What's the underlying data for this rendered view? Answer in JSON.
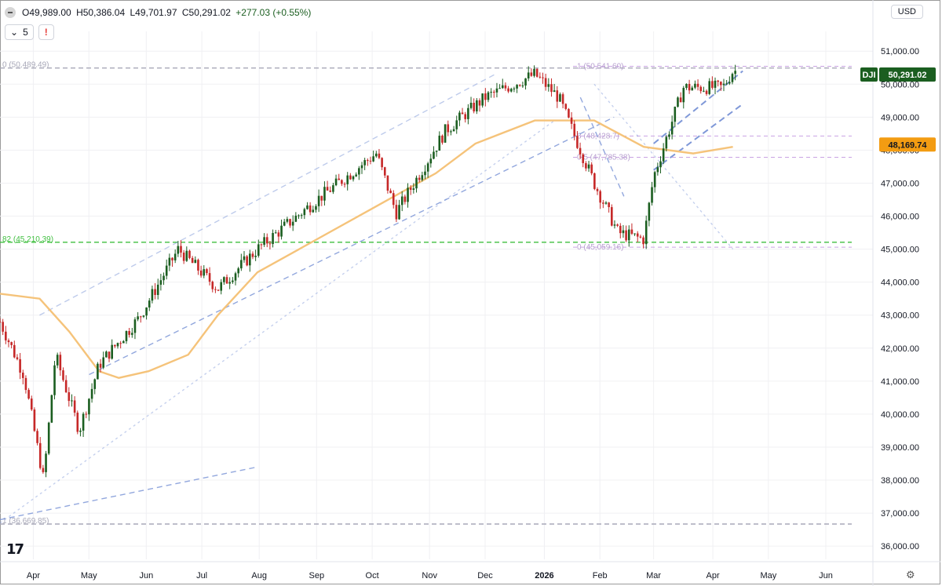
{
  "header": {
    "ohlc": {
      "open": "O49,989.00",
      "high": "H50,386.04",
      "low": "L49,701.97",
      "close": "C50,291.02",
      "change": "+277.03 (+0.55%)"
    },
    "interval_value": "5",
    "warning_glyph": "!",
    "currency": "USD"
  },
  "colors": {
    "up": "#1b5e20",
    "down": "#c62828",
    "ma": "#f5c37a",
    "grid": "#f0f0f3",
    "axis_text": "#131722",
    "trend": "#7f98d8",
    "support": "#3fbf3f",
    "fib": "#c9a3e3",
    "last_price_bg": "#1b5e20",
    "ma_label_bg": "#f39c12"
  },
  "icons": {
    "symbol": "minus-circle-icon",
    "visibility": "eye-toggle-icon",
    "warning": "warning-icon",
    "logo": "tradingview-logo-icon",
    "settings": "gear-icon"
  },
  "chart_data": {
    "type": "candlestick",
    "symbol": "DJI",
    "y_axis": {
      "ticks": [
        36000,
        37000,
        38000,
        39000,
        40000,
        41000,
        42000,
        43000,
        44000,
        45000,
        46000,
        47000,
        48000,
        49000,
        50000,
        51000
      ],
      "tick_labels": [
        "36,000.00",
        "37,000.00",
        "38,000.00",
        "39,000.00",
        "40,000.00",
        "41,000.00",
        "42,000.00",
        "43,000.00",
        "44,000.00",
        "45,000.00",
        "46,000.00",
        "47,000.00",
        "48,000.00",
        "49,000.00",
        "50,000.00",
        "51,000.00"
      ],
      "range": [
        35600,
        51600
      ]
    },
    "x_axis": {
      "labels": [
        "Apr",
        "May",
        "Jun",
        "Jul",
        "Aug",
        "Sep",
        "Oct",
        "Nov",
        "Dec",
        "2026",
        "Feb",
        "Mar",
        "Apr",
        "May",
        "Jun"
      ],
      "bold_labels": [
        "2026"
      ],
      "range_days": [
        0,
        430
      ]
    },
    "last_price": {
      "label": "DJI",
      "value": 50291.02,
      "text": "50,291.02"
    },
    "moving_average": {
      "value_text": "48,169.74",
      "value": 48169.74,
      "points": [
        [
          0,
          43650
        ],
        [
          20,
          43500
        ],
        [
          35,
          42500
        ],
        [
          50,
          41300
        ],
        [
          60,
          41100
        ],
        [
          75,
          41300
        ],
        [
          95,
          41800
        ],
        [
          110,
          43000
        ],
        [
          130,
          44300
        ],
        [
          160,
          45300
        ],
        [
          190,
          46300
        ],
        [
          220,
          47300
        ],
        [
          240,
          48200
        ],
        [
          270,
          48900
        ],
        [
          300,
          48900
        ],
        [
          325,
          48100
        ],
        [
          350,
          47900
        ],
        [
          370,
          48100
        ]
      ]
    },
    "horizontal_levels": [
      {
        "label": "0 (50,489.49)",
        "value": 50489.49,
        "style": "dashed-gray"
      },
      {
        "label": "82 (45,210.39)",
        "value": 45210.39,
        "style": "dashed-green"
      },
      {
        "label": "1 (36,669.85)",
        "value": 36669.85,
        "style": "dashed-gray"
      }
    ],
    "fib_levels": [
      {
        "label": "1 (50,541.60)",
        "value": 50541.6
      },
      {
        "label": "8 (48,428.7)",
        "value": 48428.7
      },
      {
        "label": "0.5 (47,785.38)",
        "value": 47785.38
      },
      {
        "label": "0 (45,059.16)",
        "value": 45059.16
      }
    ],
    "trendlines": [
      {
        "from": [
          0,
          36800
        ],
        "to": [
          130,
          38400
        ],
        "style": "dashed"
      },
      {
        "from": [
          45,
          41200
        ],
        "to": [
          310,
          49000
        ],
        "style": "dashed"
      },
      {
        "from": [
          20,
          43000
        ],
        "to": [
          250,
          50300
        ],
        "style": "dashed-light"
      },
      {
        "from": [
          0,
          36700
        ],
        "to": [
          280,
          48900
        ],
        "style": "dotted-light"
      },
      {
        "from": [
          300,
          50000
        ],
        "to": [
          370,
          45000
        ],
        "style": "dotted-light"
      },
      {
        "from": [
          330,
          48200
        ],
        "to": [
          375,
          50400
        ],
        "style": "dashed-bold"
      },
      {
        "from": [
          330,
          47400
        ],
        "to": [
          375,
          49400
        ],
        "style": "dashed-bold"
      },
      {
        "from": [
          293,
          49600
        ],
        "to": [
          315,
          46600
        ],
        "style": "dashed"
      }
    ],
    "anchors": [
      [
        0,
        42800
      ],
      [
        12,
        41200
      ],
      [
        22,
        38000
      ],
      [
        28,
        41800
      ],
      [
        40,
        39500
      ],
      [
        50,
        41500
      ],
      [
        70,
        42900
      ],
      [
        90,
        45000
      ],
      [
        110,
        43800
      ],
      [
        130,
        45000
      ],
      [
        160,
        46500
      ],
      [
        190,
        47900
      ],
      [
        200,
        46100
      ],
      [
        225,
        48600
      ],
      [
        245,
        49600
      ],
      [
        270,
        50300
      ],
      [
        282,
        49600
      ],
      [
        300,
        47000
      ],
      [
        312,
        45500
      ],
      [
        325,
        45300
      ],
      [
        330,
        47200
      ],
      [
        345,
        49900
      ],
      [
        365,
        49900
      ],
      [
        370,
        50400
      ]
    ]
  }
}
